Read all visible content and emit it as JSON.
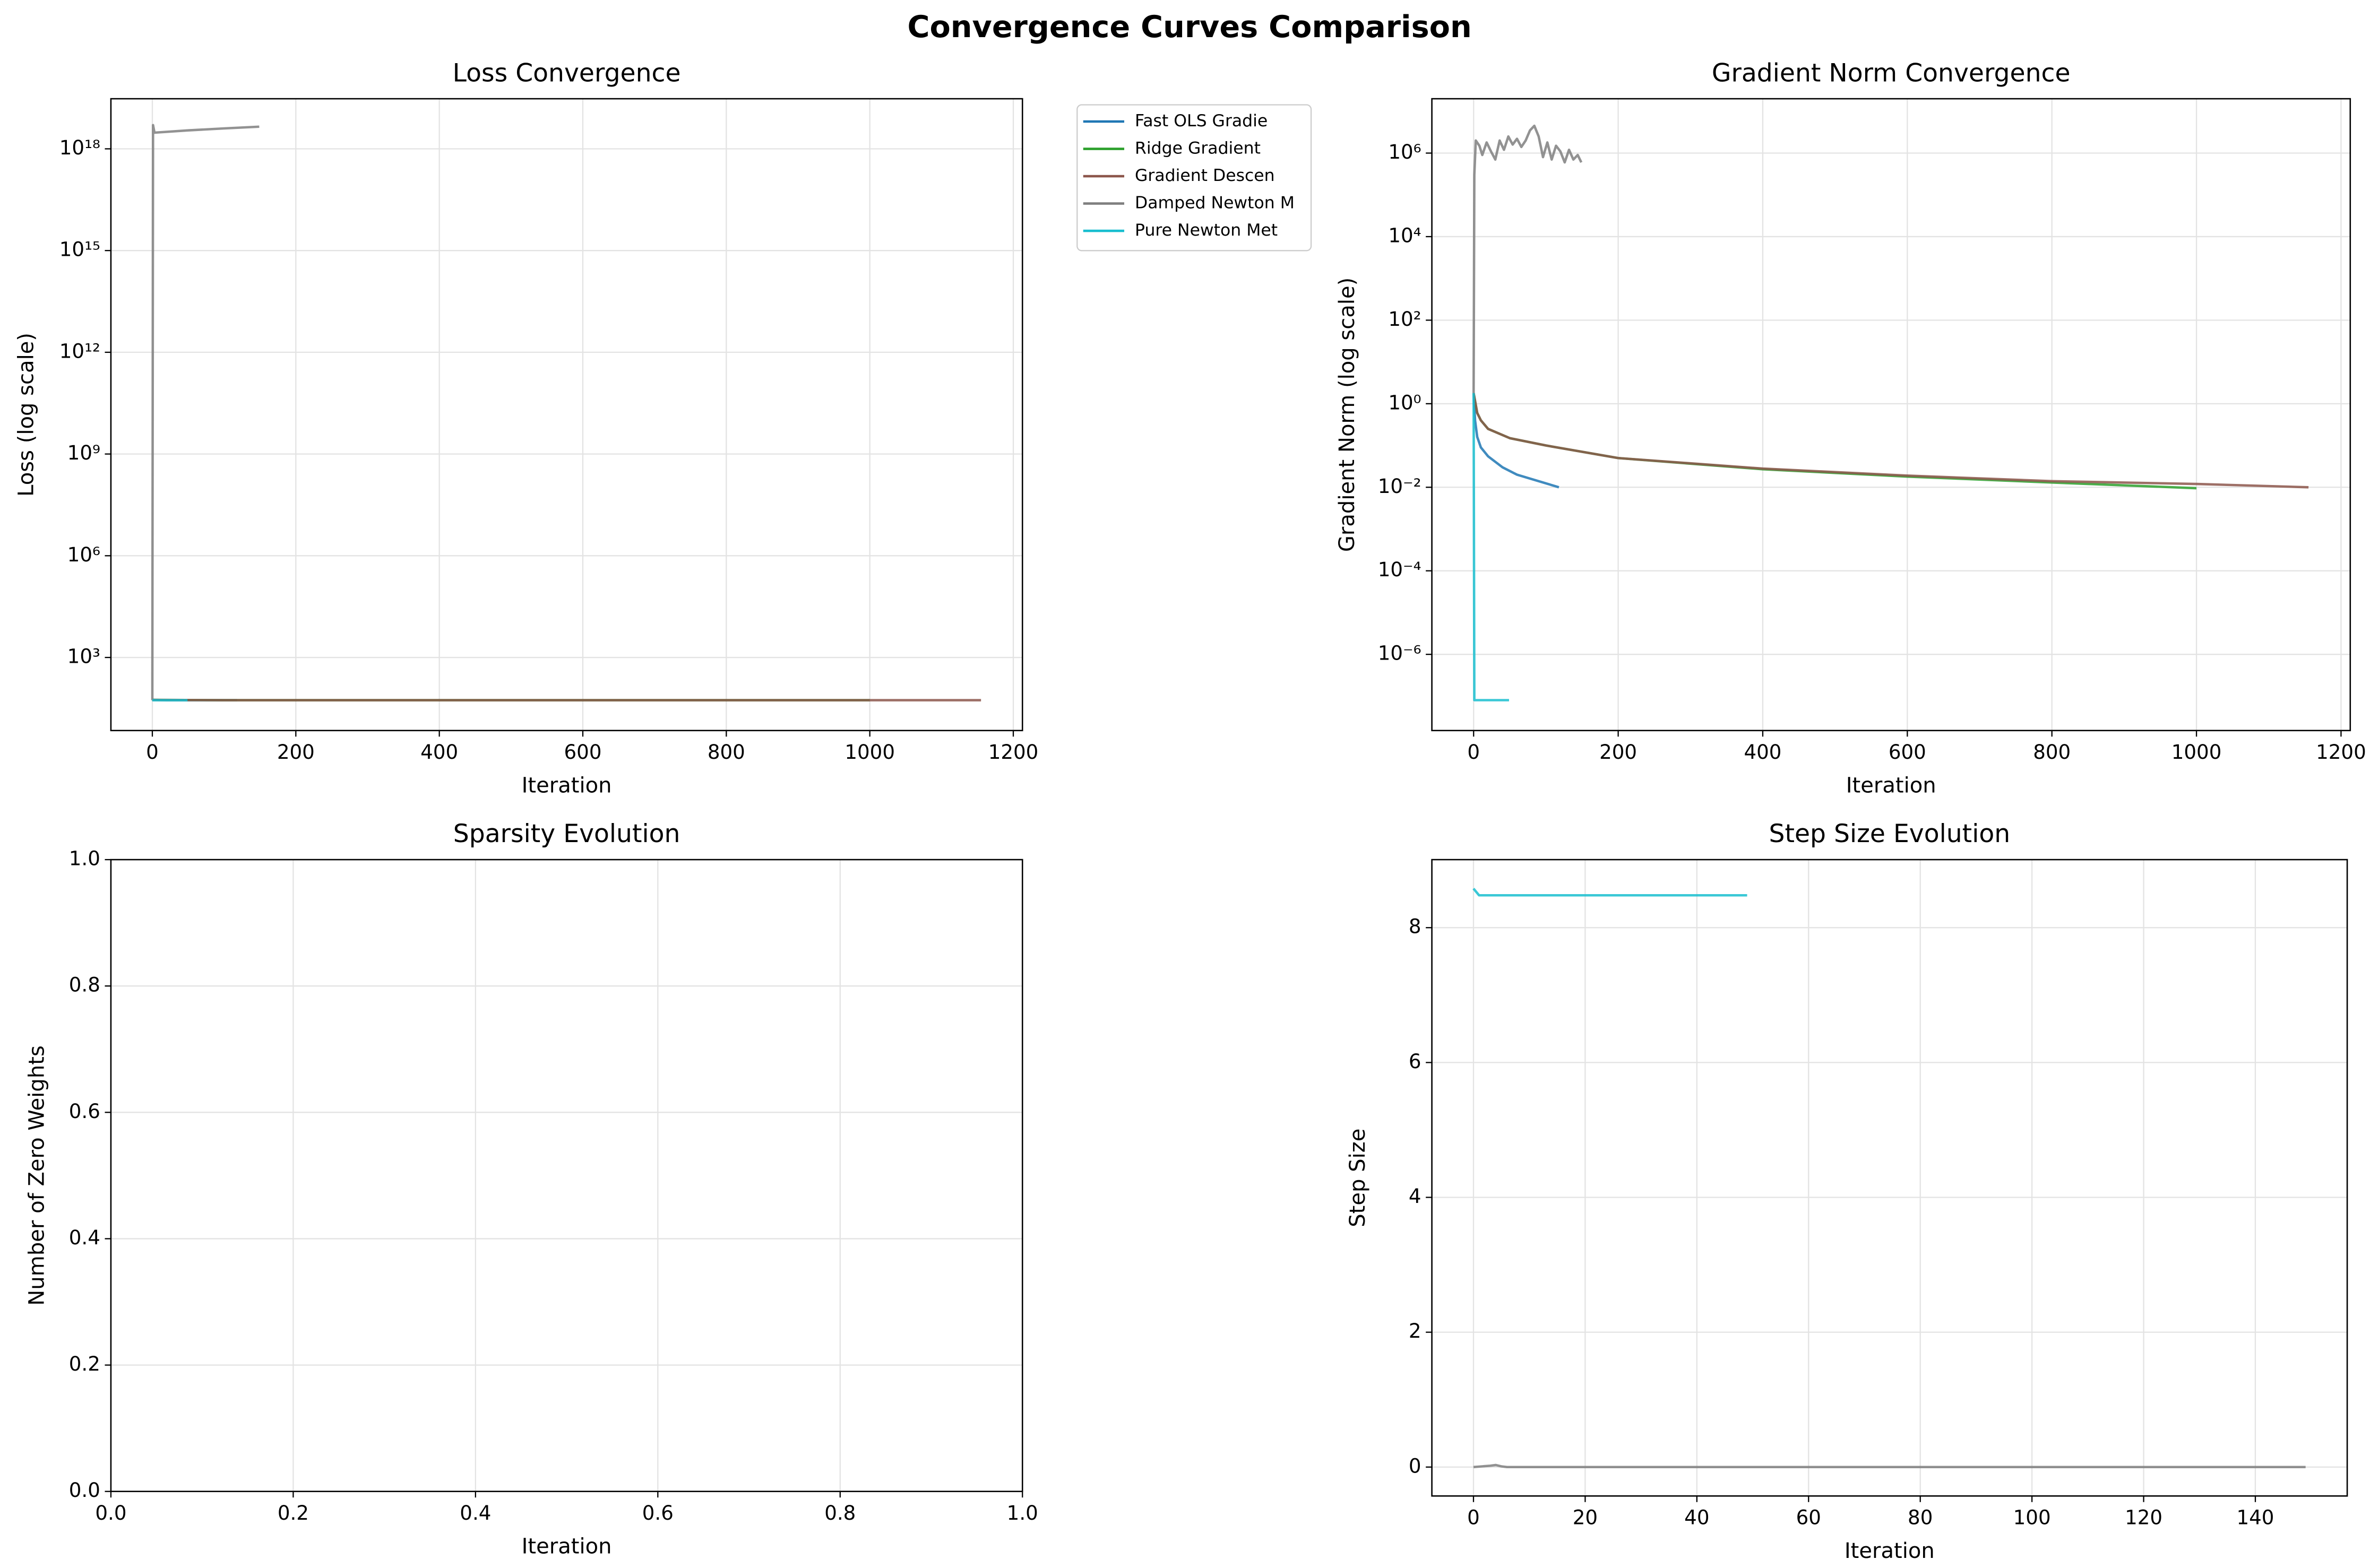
{
  "title": "Convergence Curves Comparison",
  "chart_data": [
    {
      "type": "line",
      "title": "Loss Convergence",
      "xlabel": "Iteration",
      "ylabel": "Loss (log scale)",
      "log_y": true,
      "grid": true,
      "legend": "outside-right",
      "xlim": [
        -57.75,
        1212.75
      ],
      "xticks": [
        0,
        200,
        400,
        600,
        800,
        1000,
        1200
      ],
      "ylim": [
        7,
        3e+19
      ],
      "yticks": [
        {
          "value": 1000,
          "label": "10³"
        },
        {
          "value": 1000000,
          "label": "10⁶"
        },
        {
          "value": 1000000000,
          "label": "10⁹"
        },
        {
          "value": 1000000000000,
          "label": "10¹²"
        },
        {
          "value": 1000000000000000,
          "label": "10¹⁵"
        },
        {
          "value": 1000000000000000000,
          "label": "10¹⁸"
        }
      ],
      "series": [
        {
          "name": "Fast OLS Gradie",
          "color": "#1f77b4",
          "x": [
            0,
            20,
            50,
            118
          ],
          "values": [
            56,
            55,
            55,
            55
          ]
        },
        {
          "name": "Ridge Gradient",
          "color": "#2ca02c",
          "x": [
            0,
            100,
            500,
            1000
          ],
          "values": [
            56,
            55,
            55,
            55
          ]
        },
        {
          "name": "Gradient Descen",
          "color": "#8c564b",
          "x": [
            0,
            100,
            500,
            1000,
            1155
          ],
          "values": [
            56,
            55,
            55,
            55,
            55
          ]
        },
        {
          "name": "Damped Newton M",
          "color": "#7f7f7f",
          "x": [
            0,
            1,
            3,
            50,
            100,
            149
          ],
          "values": [
            55,
            5e+18,
            3e+18,
            3.5e+18,
            4e+18,
            4.5e+18
          ]
        },
        {
          "name": "Pure Newton Met",
          "color": "#17becf",
          "x": [
            0,
            1,
            49
          ],
          "values": [
            56,
            55,
            55
          ]
        }
      ]
    },
    {
      "type": "line",
      "title": "Gradient Norm Convergence",
      "xlabel": "Iteration",
      "ylabel": "Gradient Norm (log scale)",
      "log_y": true,
      "grid": true,
      "xlim": [
        -57.75,
        1212.75
      ],
      "xticks": [
        0,
        200,
        400,
        600,
        800,
        1000,
        1200
      ],
      "ylim": [
        1.5e-08,
        20000000.0
      ],
      "yticks": [
        {
          "value": 1e-06,
          "label": "10⁻⁶"
        },
        {
          "value": 0.0001,
          "label": "10⁻⁴"
        },
        {
          "value": 0.01,
          "label": "10⁻²"
        },
        {
          "value": 1,
          "label": "10⁰"
        },
        {
          "value": 100,
          "label": "10²"
        },
        {
          "value": 10000,
          "label": "10⁴"
        },
        {
          "value": 1000000,
          "label": "10⁶"
        }
      ],
      "series": [
        {
          "name": "Fast OLS Gradie",
          "color": "#1f77b4",
          "x": [
            0,
            2,
            5,
            10,
            20,
            40,
            60,
            90,
            118
          ],
          "values": [
            1.8,
            0.4,
            0.16,
            0.09,
            0.055,
            0.03,
            0.02,
            0.014,
            0.01
          ]
        },
        {
          "name": "Ridge Gradient",
          "color": "#2ca02c",
          "x": [
            0,
            5,
            10,
            20,
            50,
            100,
            200,
            400,
            600,
            800,
            1000
          ],
          "values": [
            1.8,
            0.6,
            0.4,
            0.25,
            0.15,
            0.1,
            0.05,
            0.027,
            0.018,
            0.013,
            0.0095
          ]
        },
        {
          "name": "Gradient Descen",
          "color": "#8c564b",
          "x": [
            0,
            5,
            10,
            20,
            50,
            100,
            200,
            400,
            600,
            800,
            1000,
            1155
          ],
          "values": [
            1.8,
            0.6,
            0.4,
            0.25,
            0.15,
            0.1,
            0.05,
            0.028,
            0.019,
            0.014,
            0.012,
            0.01
          ]
        },
        {
          "name": "Damped Newton M",
          "color": "#7f7f7f",
          "x": [
            0,
            1,
            3,
            8,
            12,
            18,
            24,
            30,
            36,
            42,
            48,
            54,
            60,
            66,
            72,
            78,
            84,
            90,
            96,
            102,
            108,
            114,
            120,
            126,
            132,
            138,
            144,
            149
          ],
          "values": [
            1.8,
            300000,
            2000000,
            1500000,
            900000,
            1800000,
            1100000,
            700000,
            2000000,
            1200000,
            2500000,
            1600000,
            2200000,
            1400000,
            2000000,
            3500000,
            4500000,
            2500000,
            800000,
            1800000,
            700000,
            1500000,
            1100000,
            600000,
            1200000,
            700000,
            900000,
            600000
          ]
        },
        {
          "name": "Pure Newton Met",
          "color": "#17becf",
          "x": [
            0,
            1,
            49
          ],
          "values": [
            1.8,
            8e-08,
            8e-08
          ]
        }
      ]
    },
    {
      "type": "line",
      "title": "Sparsity Evolution",
      "xlabel": "Iteration",
      "ylabel": "Number of Zero Weights",
      "log_y": false,
      "grid": true,
      "xlim": [
        0,
        1
      ],
      "xticks": [
        {
          "value": 0,
          "label": "0.0"
        },
        {
          "value": 0.2,
          "label": "0.2"
        },
        {
          "value": 0.4,
          "label": "0.4"
        },
        {
          "value": 0.6,
          "label": "0.6"
        },
        {
          "value": 0.8,
          "label": "0.8"
        },
        {
          "value": 1,
          "label": "1.0"
        }
      ],
      "ylim": [
        0,
        1
      ],
      "yticks": [
        {
          "value": 0,
          "label": "0.0"
        },
        {
          "value": 0.2,
          "label": "0.2"
        },
        {
          "value": 0.4,
          "label": "0.4"
        },
        {
          "value": 0.6,
          "label": "0.6"
        },
        {
          "value": 0.8,
          "label": "0.8"
        },
        {
          "value": 1,
          "label": "1.0"
        }
      ],
      "series": []
    },
    {
      "type": "line",
      "title": "Step Size Evolution",
      "xlabel": "Iteration",
      "ylabel": "Step Size",
      "log_y": false,
      "grid": true,
      "xlim": [
        -7.45,
        156.45
      ],
      "xticks": [
        0,
        20,
        40,
        60,
        80,
        100,
        120,
        140
      ],
      "ylim": [
        -0.429,
        9.009
      ],
      "yticks": [
        0,
        2,
        4,
        6,
        8
      ],
      "series": [
        {
          "name": "Damped Newton M",
          "color": "#7f7f7f",
          "x": [
            0,
            3,
            4,
            5,
            6,
            149
          ],
          "values": [
            0,
            0.02,
            0.03,
            0.01,
            0,
            0
          ]
        },
        {
          "name": "Pure Newton Met",
          "color": "#17becf",
          "x": [
            0,
            1,
            49
          ],
          "values": [
            8.58,
            8.48,
            8.48
          ]
        }
      ]
    }
  ]
}
